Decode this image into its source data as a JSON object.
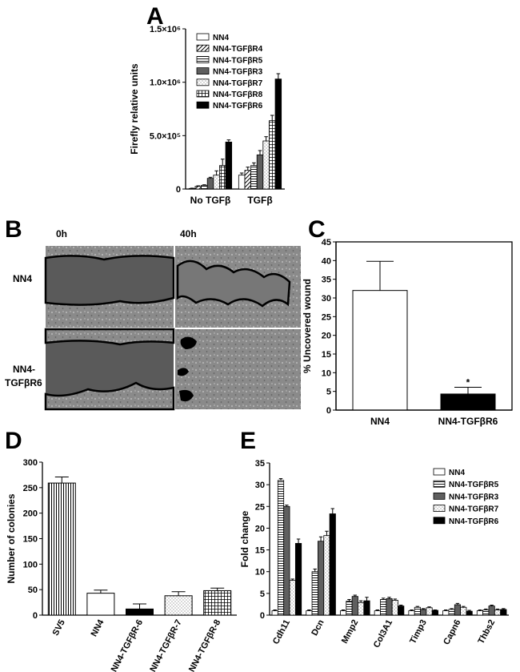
{
  "panels": {
    "a": "A",
    "b": "B",
    "c": "C",
    "d": "D",
    "e": "E"
  },
  "micrograph": {
    "time_0": "0h",
    "time_40": "40h",
    "row1": "NN4",
    "row2_line1": "NN4-",
    "row2_line2": "TGFβR6",
    "colors": {
      "gap": "#585858",
      "cells": "#8a8a8a",
      "outline": "#000000"
    }
  },
  "chart_data": [
    {
      "id": "A",
      "type": "bar",
      "ylabel": "Firefly relative units",
      "ylim": [
        0,
        1500000
      ],
      "yticks": [
        {
          "value": 0,
          "label": "0"
        },
        {
          "value": 500000,
          "label": "5.0×10⁵"
        },
        {
          "value": 1000000,
          "label": "1.0×10⁶"
        },
        {
          "value": 1500000,
          "label": "1.5×10⁶"
        }
      ],
      "categories": [
        "No TGFβ",
        "TGFβ"
      ],
      "legend": "top-left",
      "series": [
        {
          "name": "NN4",
          "fill": "white",
          "values": [
            5000,
            130000
          ],
          "errors": [
            3000,
            20000
          ]
        },
        {
          "name": "NN4-TGFβR4",
          "fill": "diag",
          "values": [
            25000,
            175000
          ],
          "errors": [
            5000,
            30000
          ]
        },
        {
          "name": "NN4-TGFβR5",
          "fill": "hlines",
          "values": [
            35000,
            220000
          ],
          "errors": [
            5000,
            25000
          ]
        },
        {
          "name": "NN4-TGFβR3",
          "fill": "dark",
          "values": [
            100000,
            320000
          ],
          "errors": [
            10000,
            40000
          ]
        },
        {
          "name": "NN4-TGFβR7",
          "fill": "dots",
          "values": [
            130000,
            450000
          ],
          "errors": [
            40000,
            40000
          ]
        },
        {
          "name": "NN4-TGFβR8",
          "fill": "grid",
          "values": [
            220000,
            640000
          ],
          "errors": [
            60000,
            50000
          ]
        },
        {
          "name": "NN4-TGFβR6",
          "fill": "black",
          "values": [
            440000,
            1030000
          ],
          "errors": [
            20000,
            50000
          ]
        }
      ]
    },
    {
      "id": "C",
      "type": "bar",
      "ylabel": "% Uncovered wound",
      "ylim": [
        0,
        45
      ],
      "yticks": [
        {
          "value": 0,
          "label": "0"
        },
        {
          "value": 5,
          "label": "5"
        },
        {
          "value": 10,
          "label": "10"
        },
        {
          "value": 15,
          "label": "15"
        },
        {
          "value": 20,
          "label": "20"
        },
        {
          "value": 25,
          "label": "25"
        },
        {
          "value": 30,
          "label": "30"
        },
        {
          "value": 35,
          "label": "35"
        },
        {
          "value": 40,
          "label": "40"
        },
        {
          "value": 45,
          "label": "45"
        }
      ],
      "categories": [
        "NN4",
        "NN4-TGFβR6"
      ],
      "values": [
        32,
        4.3
      ],
      "errors": [
        7.8,
        1.8
      ],
      "fills": [
        "white",
        "black"
      ],
      "annotations": [
        {
          "category": 1,
          "text": "*"
        }
      ]
    },
    {
      "id": "D",
      "type": "bar",
      "ylabel": "Number of colonies",
      "ylim": [
        0,
        300
      ],
      "yticks": [
        {
          "value": 0,
          "label": "0"
        },
        {
          "value": 50,
          "label": "50"
        },
        {
          "value": 100,
          "label": "100"
        },
        {
          "value": 150,
          "label": "150"
        },
        {
          "value": 200,
          "label": "200"
        },
        {
          "value": 250,
          "label": "250"
        },
        {
          "value": 300,
          "label": "300"
        }
      ],
      "categories": [
        "SV5",
        "NN4",
        "NN4-TGFβR-6",
        "NN4-TGFβR-7",
        "NN4-TGFβR-8"
      ],
      "values": [
        259,
        43,
        12,
        38,
        48
      ],
      "errors": [
        12,
        6,
        10,
        8,
        5
      ],
      "fills": [
        "vlines",
        "white",
        "black",
        "dots",
        "grid"
      ]
    },
    {
      "id": "E",
      "type": "bar",
      "ylabel": "Fold change",
      "ylim": [
        0,
        35
      ],
      "yticks": [
        {
          "value": 0,
          "label": "0"
        },
        {
          "value": 5,
          "label": "5"
        },
        {
          "value": 10,
          "label": "10"
        },
        {
          "value": 15,
          "label": "15"
        },
        {
          "value": 20,
          "label": "20"
        },
        {
          "value": 25,
          "label": "25"
        },
        {
          "value": 30,
          "label": "30"
        },
        {
          "value": 35,
          "label": "35"
        }
      ],
      "categories": [
        "Cdh11",
        "Dcn",
        "Mmp2",
        "Col3A1",
        "Timp3",
        "Capn6",
        "Thbs2"
      ],
      "legend": "top-right",
      "series": [
        {
          "name": "NN4",
          "fill": "white",
          "values": [
            1,
            1,
            1,
            1,
            1,
            1,
            1
          ],
          "errors": [
            0.2,
            0.2,
            0.2,
            0.2,
            0.2,
            0.2,
            0.2
          ]
        },
        {
          "name": "NN4-TGFβR5",
          "fill": "hlines",
          "values": [
            31,
            10,
            3.2,
            3.6,
            1.8,
            1.3,
            1.2
          ],
          "errors": [
            0.4,
            0.6,
            0.4,
            0.3,
            0.2,
            0.2,
            0.2
          ]
        },
        {
          "name": "NN4-TGFβR3",
          "fill": "dark",
          "values": [
            25,
            17,
            4.3,
            3.8,
            1.3,
            2.4,
            2.1
          ],
          "errors": [
            0.3,
            1,
            0.3,
            0.3,
            0.2,
            0.3,
            0.2
          ]
        },
        {
          "name": "NN4-TGFβR7",
          "fill": "dots",
          "values": [
            8,
            18.3,
            2.9,
            3.4,
            1.7,
            1.8,
            1.2
          ],
          "errors": [
            0.3,
            1,
            0.4,
            0.3,
            0.2,
            0.2,
            0.2
          ]
        },
        {
          "name": "NN4-TGFβR6",
          "fill": "black",
          "values": [
            16.5,
            23.3,
            3.3,
            2.1,
            1.1,
            0.9,
            1.3
          ],
          "errors": [
            1,
            1.2,
            0.8,
            0.2,
            0.1,
            0.2,
            0.2
          ]
        }
      ]
    }
  ]
}
